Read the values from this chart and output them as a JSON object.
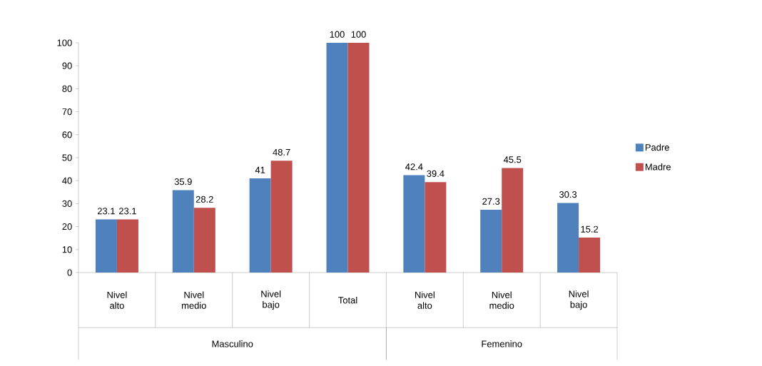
{
  "chart_data": {
    "type": "bar",
    "categories": [
      "Nivel alto",
      "Nivel medio",
      "Nivel bajo",
      "Total",
      "Nivel alto",
      "Nivel medio",
      "Nivel bajo"
    ],
    "series": [
      {
        "name": "Padre",
        "color": "#4f81bd",
        "values": [
          23.1,
          35.9,
          41,
          100,
          42.4,
          27.3,
          30.3
        ]
      },
      {
        "name": "Madre",
        "color": "#c0504d",
        "values": [
          23.1,
          28.2,
          48.7,
          100,
          39.4,
          45.5,
          15.2
        ]
      }
    ],
    "ylim": [
      0,
      100
    ],
    "yticks": [
      0,
      10,
      20,
      30,
      40,
      50,
      60,
      70,
      80,
      90,
      100
    ],
    "data_labels": true,
    "legend": "right",
    "grid": false,
    "annotations": [
      "Masculino",
      "Femenino"
    ]
  }
}
